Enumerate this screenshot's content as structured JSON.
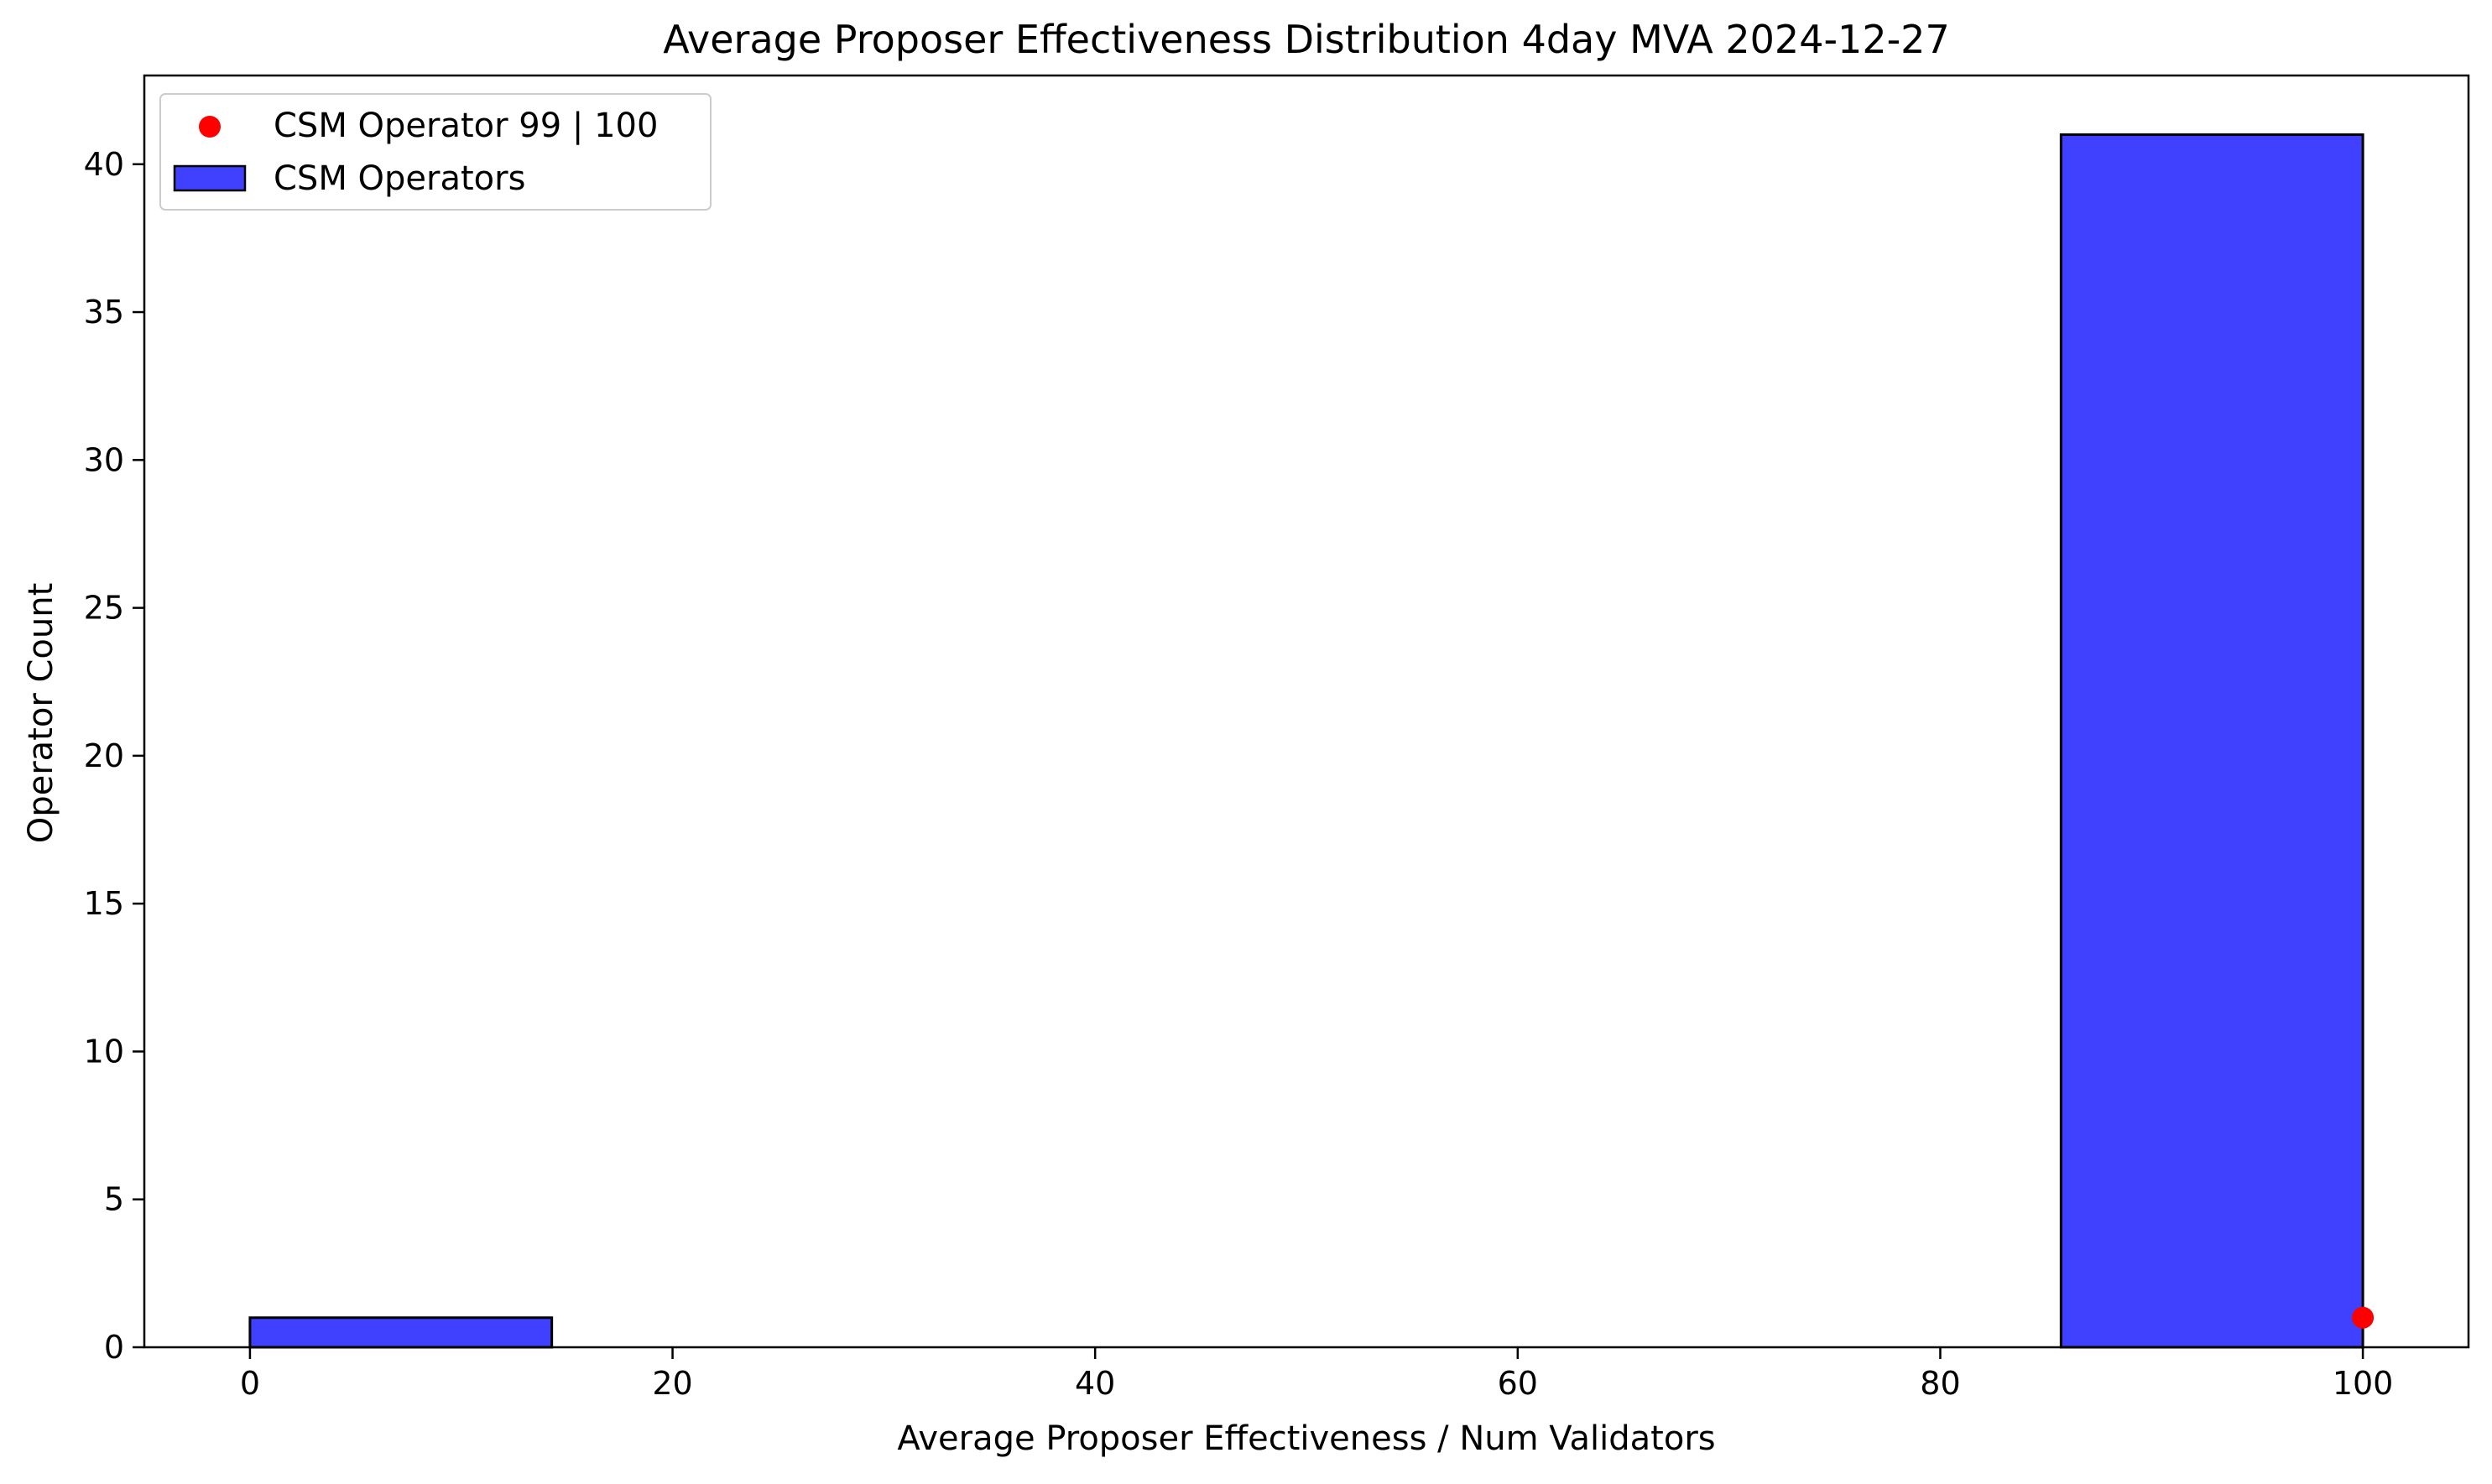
{
  "chart_data": {
    "type": "bar",
    "subtype": "histogram",
    "title": "Average Proposer Effectiveness Distribution 4day MVA 2024-12-27",
    "xlabel": "Average Proposer Effectiveness / Num Validators",
    "ylabel": "Operator Count",
    "xlim": [
      -5,
      105
    ],
    "ylim": [
      0,
      43
    ],
    "xticks": [
      0,
      20,
      40,
      60,
      80,
      100
    ],
    "yticks": [
      0,
      5,
      10,
      15,
      20,
      25,
      30,
      35,
      40
    ],
    "grid": false,
    "legend_position": "top-left",
    "series": [
      {
        "name": "CSM Operators",
        "kind": "histogram",
        "color": "#4040ff",
        "edgecolor": "#000000",
        "bins": [
          {
            "x0": 0,
            "x1": 14.2857,
            "count": 1
          },
          {
            "x0": 14.2857,
            "x1": 28.5714,
            "count": 0
          },
          {
            "x0": 28.5714,
            "x1": 42.8571,
            "count": 0
          },
          {
            "x0": 42.8571,
            "x1": 57.1429,
            "count": 0
          },
          {
            "x0": 57.1429,
            "x1": 71.4286,
            "count": 0
          },
          {
            "x0": 71.4286,
            "x1": 85.7143,
            "count": 0
          },
          {
            "x0": 85.7143,
            "x1": 100,
            "count": 41
          }
        ]
      },
      {
        "name": "CSM Operator 99  |  100",
        "kind": "scatter",
        "color": "#ff0000",
        "points": [
          {
            "x": 100,
            "y": 1
          }
        ]
      }
    ]
  }
}
